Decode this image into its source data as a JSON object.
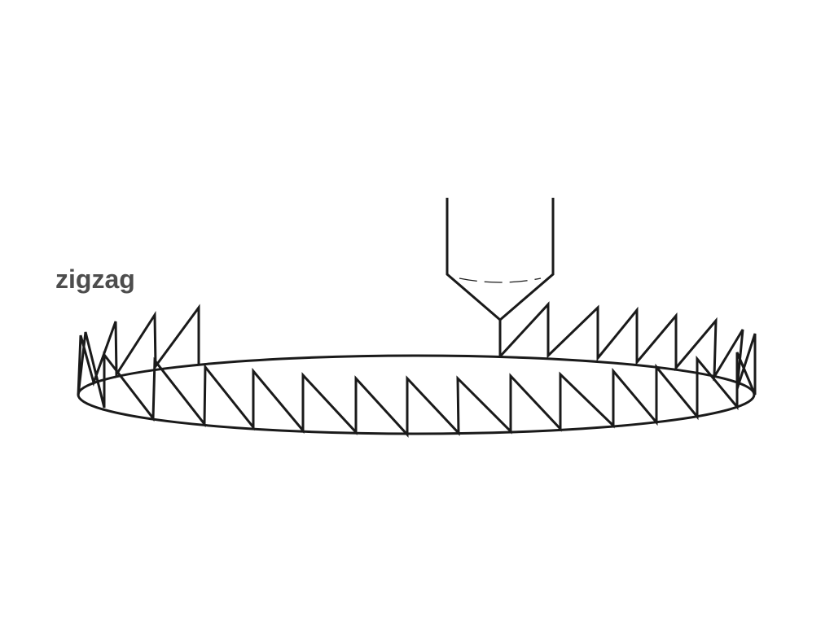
{
  "label": "zigzag",
  "colors": {
    "stroke": "#1a1a1a",
    "label": "#4d4d4d",
    "background": "#ffffff"
  }
}
